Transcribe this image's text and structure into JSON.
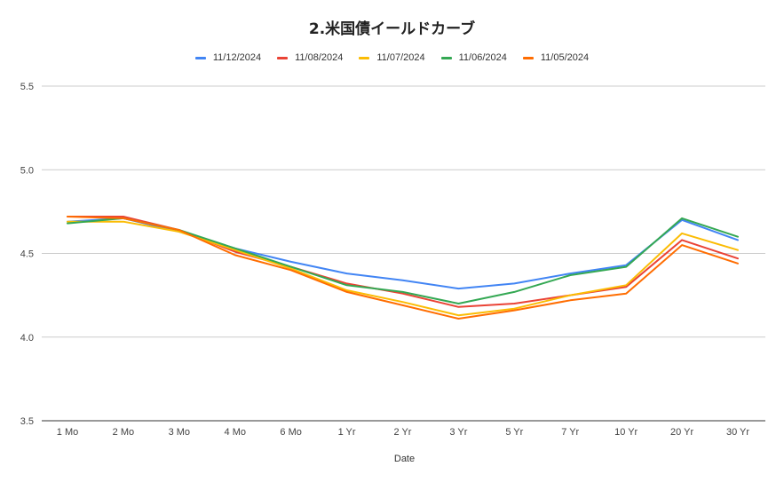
{
  "chart_data": {
    "type": "line",
    "title": "2.米国債イールドカーブ",
    "xlabel": "Date",
    "ylabel": "",
    "ylim": [
      3.5,
      5.5
    ],
    "yticks": [
      "5.5",
      "5.0",
      "4.5",
      "4.0",
      "3.5"
    ],
    "grid": true,
    "legend_position": "top",
    "categories": [
      "1 Mo",
      "2 Mo",
      "3 Mo",
      "4 Mo",
      "6 Mo",
      "1 Yr",
      "2 Yr",
      "3 Yr",
      "5 Yr",
      "7 Yr",
      "10 Yr",
      "20 Yr",
      "30 Yr"
    ],
    "series": [
      {
        "name": "11/12/2024",
        "color": "#4285f4",
        "values": [
          4.69,
          4.71,
          4.63,
          4.53,
          4.45,
          4.38,
          4.34,
          4.29,
          4.32,
          4.38,
          4.43,
          4.7,
          4.58
        ]
      },
      {
        "name": "11/08/2024",
        "color": "#ea4335",
        "values": [
          4.72,
          4.72,
          4.64,
          4.51,
          4.42,
          4.32,
          4.26,
          4.18,
          4.2,
          4.25,
          4.3,
          4.58,
          4.47
        ]
      },
      {
        "name": "11/07/2024",
        "color": "#fbbc04",
        "values": [
          4.69,
          4.69,
          4.63,
          4.52,
          4.41,
          4.28,
          4.21,
          4.13,
          4.17,
          4.25,
          4.31,
          4.62,
          4.52
        ]
      },
      {
        "name": "11/06/2024",
        "color": "#34a853",
        "values": [
          4.68,
          4.71,
          4.64,
          4.53,
          4.42,
          4.31,
          4.27,
          4.2,
          4.27,
          4.37,
          4.42,
          4.71,
          4.6
        ]
      },
      {
        "name": "11/05/2024",
        "color": "#ff6d01",
        "values": [
          4.72,
          4.71,
          4.64,
          4.49,
          4.4,
          4.27,
          4.19,
          4.11,
          4.16,
          4.22,
          4.26,
          4.55,
          4.44
        ]
      }
    ]
  }
}
